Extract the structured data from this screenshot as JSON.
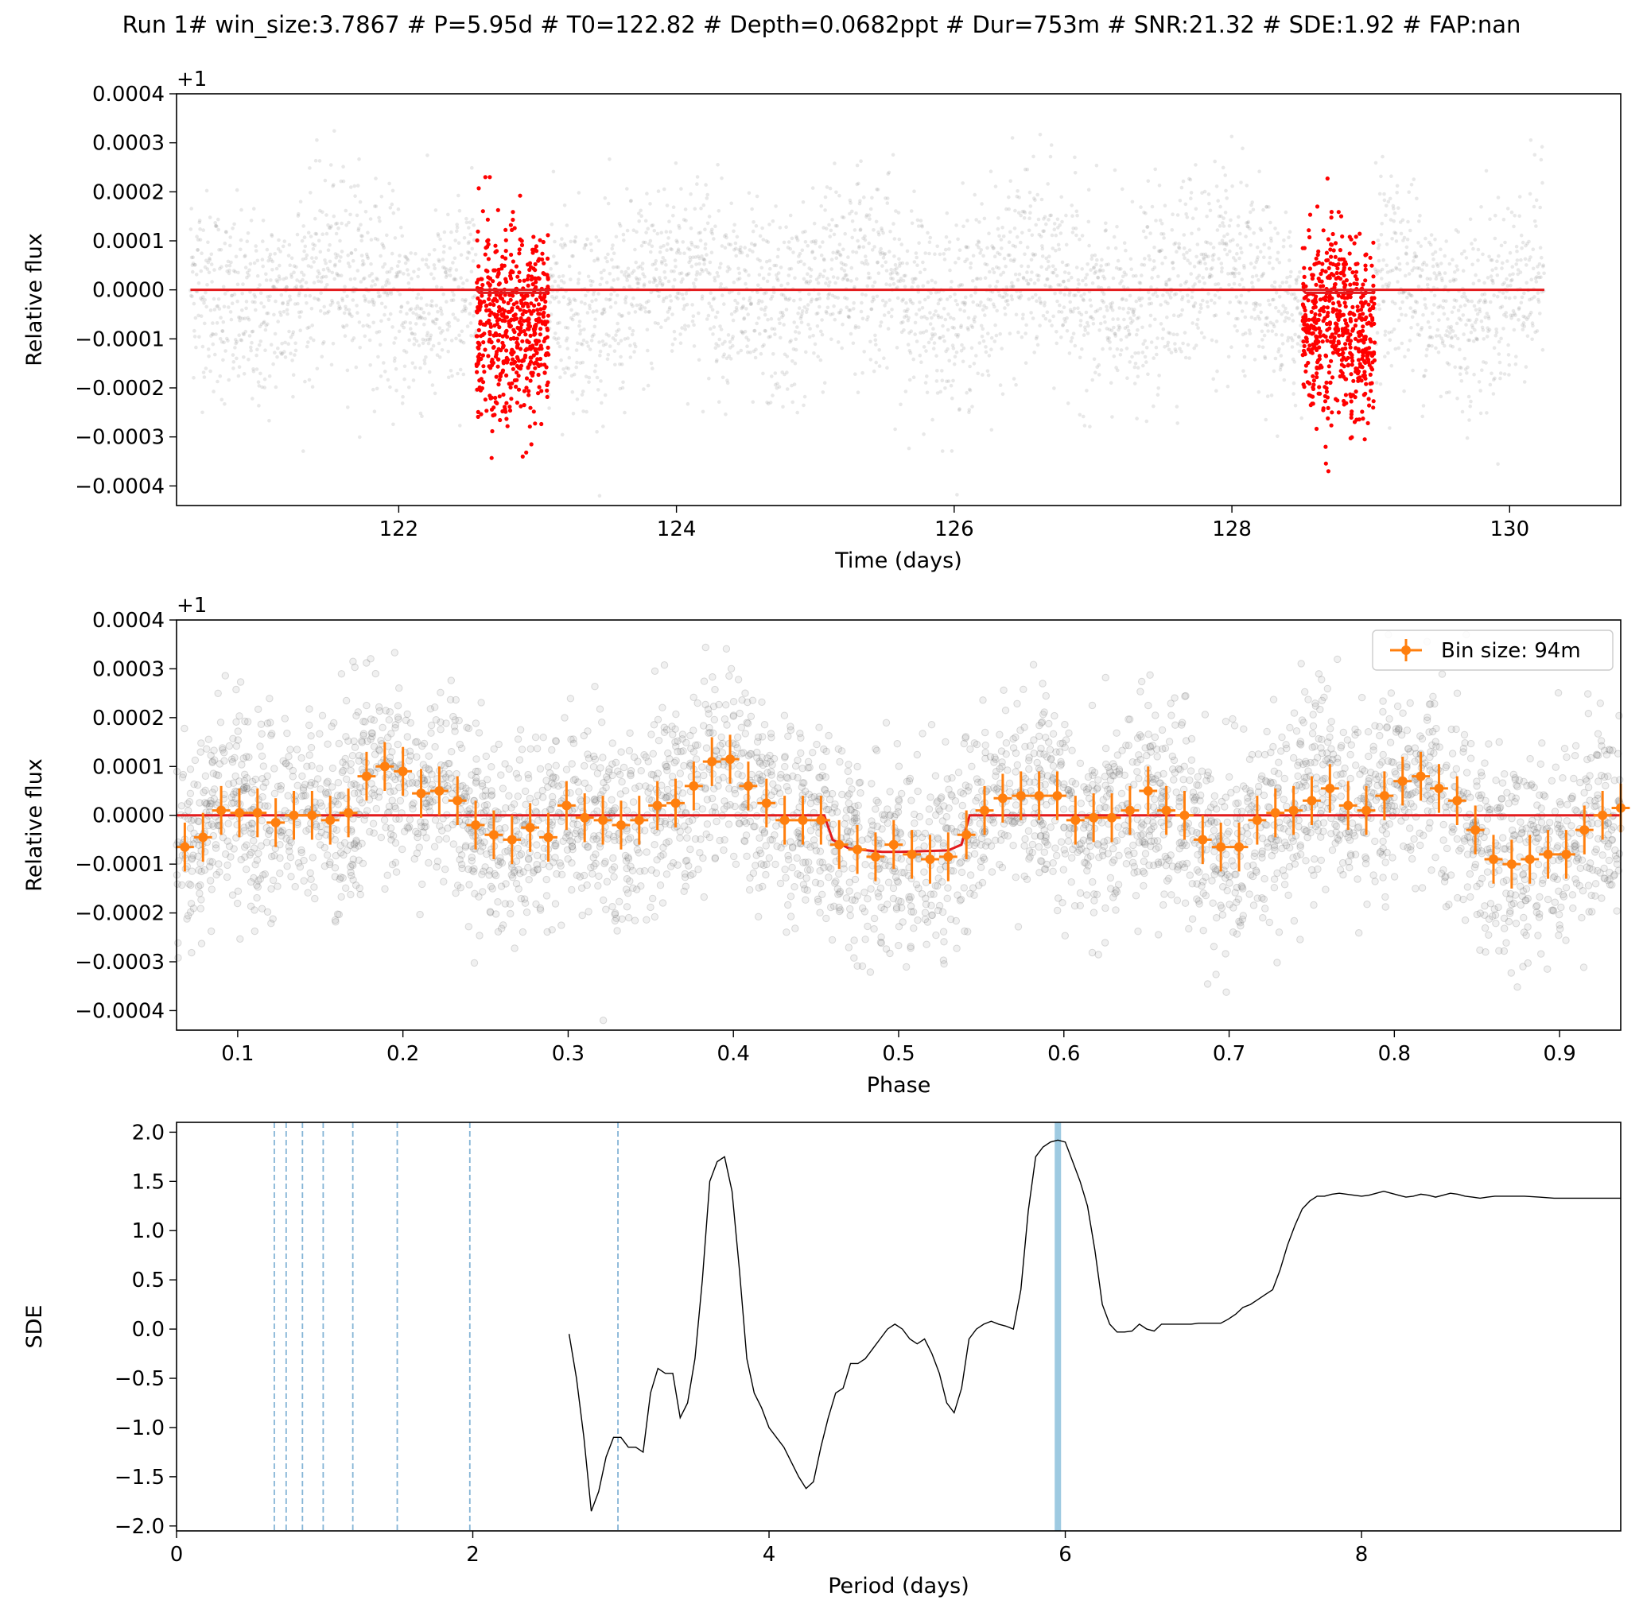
{
  "figure_title": "Run 1# win_size:3.7867 # P=5.95d # T0=122.82 # Depth=0.0682ppt # Dur=753m # SNR:21.32 # SDE:1.92 # FAP:nan",
  "colors": {
    "raw_points": "#808080",
    "in_transit": "#ff0000",
    "model": "#e31a1c",
    "binned": "#ff7f0e",
    "periodogram": "#000000",
    "harmonic": "#1f77b4",
    "best_period": "#9ecae1"
  },
  "chart_data": [
    {
      "type": "scatter",
      "title": "",
      "xlabel": "Time (days)",
      "ylabel": "Relative flux",
      "offset_label": "+1",
      "xlim": [
        120.4,
        130.8
      ],
      "ylim": [
        -0.00044,
        0.0004
      ],
      "xticks": [
        122,
        124,
        126,
        128,
        130
      ],
      "yticks": [
        -0.0004,
        -0.0003,
        -0.0002,
        -0.0001,
        0.0,
        0.0001,
        0.0002,
        0.0003,
        0.0004
      ],
      "ytick_labels": [
        "−0.0004",
        "−0.0003",
        "−0.0002",
        "−0.0001",
        "0.0000",
        "0.0001",
        "0.0002",
        "0.0003",
        "0.0004"
      ],
      "grid": false,
      "time_range": [
        120.5,
        130.25
      ],
      "transit_windows": [
        [
          122.56,
          123.08
        ],
        [
          128.51,
          129.03
        ]
      ],
      "model_line": {
        "x": [
          120.5,
          130.25
        ],
        "y": 0.0
      },
      "series": [
        {
          "role": "raw flux",
          "scatter_sigma": 0.00011
        },
        {
          "role": "in-transit flux",
          "depth": -6.82e-05
        }
      ]
    },
    {
      "type": "scatter",
      "title": "",
      "xlabel": "Phase",
      "ylabel": "Relative flux",
      "offset_label": "+1",
      "xlim": [
        0.063,
        0.937
      ],
      "ylim": [
        -0.00044,
        0.0004
      ],
      "xticks": [
        0.1,
        0.2,
        0.3,
        0.4,
        0.5,
        0.6,
        0.7,
        0.8,
        0.9
      ],
      "yticks": [
        -0.0004,
        -0.0003,
        -0.0002,
        -0.0001,
        0.0,
        0.0001,
        0.0002,
        0.0003,
        0.0004
      ],
      "ytick_labels": [
        "−0.0004",
        "−0.0003",
        "−0.0002",
        "−0.0001",
        "0.0000",
        "0.0001",
        "0.0002",
        "0.0003",
        "0.0004"
      ],
      "legend": {
        "label": "Bin size: 94m",
        "placement": "top-right"
      },
      "binned": {
        "phase": [
          0.068,
          0.079,
          0.09,
          0.101,
          0.112,
          0.123,
          0.134,
          0.145,
          0.156,
          0.167,
          0.178,
          0.189,
          0.2,
          0.211,
          0.222,
          0.233,
          0.244,
          0.255,
          0.266,
          0.277,
          0.288,
          0.299,
          0.31,
          0.321,
          0.332,
          0.343,
          0.354,
          0.365,
          0.376,
          0.387,
          0.398,
          0.409,
          0.42,
          0.431,
          0.442,
          0.453,
          0.464,
          0.475,
          0.486,
          0.497,
          0.508,
          0.519,
          0.53,
          0.541,
          0.552,
          0.563,
          0.574,
          0.585,
          0.596,
          0.607,
          0.618,
          0.629,
          0.64,
          0.651,
          0.662,
          0.673,
          0.684,
          0.695,
          0.706,
          0.717,
          0.728,
          0.739,
          0.75,
          0.761,
          0.772,
          0.783,
          0.794,
          0.805,
          0.816,
          0.827,
          0.838,
          0.849,
          0.86,
          0.871,
          0.882,
          0.893,
          0.904,
          0.915,
          0.926,
          0.937
        ],
        "flux": [
          -6.5e-05,
          -4.5e-05,
          1e-05,
          5e-06,
          5e-06,
          -1.5e-05,
          0.0,
          0.0,
          -1e-05,
          5e-06,
          8e-05,
          0.0001,
          9e-05,
          4.5e-05,
          5e-05,
          3e-05,
          -2e-05,
          -4e-05,
          -5e-05,
          -2.5e-05,
          -4.5e-05,
          2e-05,
          -5e-06,
          -1e-05,
          -2e-05,
          -1e-05,
          2e-05,
          2.5e-05,
          6e-05,
          0.00011,
          0.000115,
          6e-05,
          2.5e-05,
          -1e-05,
          -1e-05,
          -1e-05,
          -6e-05,
          -7e-05,
          -8.5e-05,
          -6e-05,
          -8e-05,
          -9e-05,
          -8.5e-05,
          -4e-05,
          1e-05,
          3.5e-05,
          4e-05,
          4e-05,
          4e-05,
          -1e-05,
          -5e-06,
          -5e-06,
          1e-05,
          5e-05,
          1e-05,
          0.0,
          -5e-05,
          -6.5e-05,
          -6.5e-05,
          -1e-05,
          5e-06,
          1e-05,
          3e-05,
          5.5e-05,
          2e-05,
          1e-05,
          4e-05,
          7e-05,
          8e-05,
          5.5e-05,
          3e-05,
          -3e-05,
          -9e-05,
          -0.0001,
          -9e-05,
          -8e-05,
          -8e-05,
          -3e-05,
          0.0,
          1.5e-05
        ],
        "error": 5e-05
      },
      "model_curve": {
        "phase": [
          0.063,
          0.455,
          0.46,
          0.47,
          0.49,
          0.5,
          0.53,
          0.538,
          0.543,
          0.937
        ],
        "flux": [
          0.0,
          0.0,
          -5e-05,
          -6.8e-05,
          -7.5e-05,
          -7.5e-05,
          -7.2e-05,
          -6e-05,
          0.0,
          0.0
        ]
      }
    },
    {
      "type": "line",
      "title": "",
      "xlabel": "Period (days)",
      "ylabel": "SDE",
      "xlim": [
        0,
        9.75
      ],
      "ylim": [
        -2.05,
        2.1
      ],
      "xticks": [
        0,
        2,
        4,
        6,
        8
      ],
      "yticks": [
        -2.0,
        -1.5,
        -1.0,
        -0.5,
        0.0,
        0.5,
        1.0,
        1.5,
        2.0
      ],
      "ytick_labels": [
        "−2.0",
        "−1.5",
        "−1.0",
        "−0.5",
        "0.0",
        "0.5",
        "1.0",
        "1.5",
        "2.0"
      ],
      "best_period": 5.95,
      "harmonics": [
        0.66,
        0.74,
        0.85,
        0.99,
        1.19,
        1.49,
        1.98,
        2.98
      ],
      "x": [
        2.65,
        2.7,
        2.75,
        2.8,
        2.85,
        2.9,
        2.95,
        3.0,
        3.05,
        3.1,
        3.15,
        3.2,
        3.25,
        3.3,
        3.35,
        3.4,
        3.45,
        3.5,
        3.55,
        3.6,
        3.65,
        3.7,
        3.75,
        3.8,
        3.85,
        3.9,
        3.95,
        4.0,
        4.05,
        4.1,
        4.15,
        4.2,
        4.25,
        4.3,
        4.35,
        4.4,
        4.45,
        4.5,
        4.55,
        4.6,
        4.65,
        4.7,
        4.75,
        4.8,
        4.85,
        4.9,
        4.95,
        5.0,
        5.05,
        5.1,
        5.15,
        5.2,
        5.25,
        5.3,
        5.35,
        5.4,
        5.45,
        5.5,
        5.55,
        5.6,
        5.65,
        5.7,
        5.75,
        5.8,
        5.85,
        5.9,
        5.95,
        6.0,
        6.05,
        6.1,
        6.15,
        6.2,
        6.25,
        6.3,
        6.35,
        6.4,
        6.45,
        6.5,
        6.55,
        6.6,
        6.65,
        6.7,
        6.75,
        6.8,
        6.85,
        6.9,
        6.95,
        7.0,
        7.05,
        7.1,
        7.15,
        7.2,
        7.25,
        7.3,
        7.35,
        7.4,
        7.45,
        7.5,
        7.55,
        7.6,
        7.65,
        7.7,
        7.75,
        7.8,
        7.85,
        7.9,
        7.95,
        8.0,
        8.05,
        8.1,
        8.15,
        8.2,
        8.25,
        8.3,
        8.35,
        8.4,
        8.45,
        8.5,
        8.55,
        8.6,
        8.65,
        8.7,
        8.75,
        8.8,
        8.85,
        8.9,
        8.95,
        9.0,
        9.1,
        9.2,
        9.3,
        9.4,
        9.5,
        9.6,
        9.75
      ],
      "values": [
        -0.05,
        -0.5,
        -1.1,
        -1.85,
        -1.65,
        -1.3,
        -1.1,
        -1.1,
        -1.2,
        -1.2,
        -1.25,
        -0.65,
        -0.4,
        -0.45,
        -0.45,
        -0.9,
        -0.75,
        -0.3,
        0.5,
        1.5,
        1.7,
        1.75,
        1.4,
        0.6,
        -0.3,
        -0.65,
        -0.8,
        -1.0,
        -1.1,
        -1.2,
        -1.35,
        -1.5,
        -1.62,
        -1.55,
        -1.2,
        -0.9,
        -0.65,
        -0.6,
        -0.35,
        -0.35,
        -0.3,
        -0.2,
        -0.1,
        0.0,
        0.05,
        0.0,
        -0.1,
        -0.15,
        -0.1,
        -0.25,
        -0.45,
        -0.75,
        -0.85,
        -0.6,
        -0.1,
        0.0,
        0.05,
        0.08,
        0.05,
        0.03,
        0.0,
        0.4,
        1.2,
        1.75,
        1.85,
        1.9,
        1.92,
        1.9,
        1.7,
        1.5,
        1.25,
        0.8,
        0.25,
        0.05,
        -0.03,
        -0.03,
        -0.02,
        0.05,
        0.0,
        -0.02,
        0.05,
        0.05,
        0.05,
        0.05,
        0.05,
        0.06,
        0.06,
        0.06,
        0.06,
        0.1,
        0.15,
        0.22,
        0.25,
        0.3,
        0.35,
        0.4,
        0.6,
        0.85,
        1.05,
        1.22,
        1.3,
        1.35,
        1.35,
        1.37,
        1.38,
        1.37,
        1.36,
        1.35,
        1.36,
        1.38,
        1.4,
        1.38,
        1.36,
        1.34,
        1.35,
        1.37,
        1.36,
        1.34,
        1.36,
        1.38,
        1.37,
        1.35,
        1.34,
        1.33,
        1.34,
        1.35,
        1.35,
        1.35,
        1.35,
        1.34,
        1.33,
        1.33,
        1.33,
        1.33,
        1.33
      ]
    }
  ]
}
